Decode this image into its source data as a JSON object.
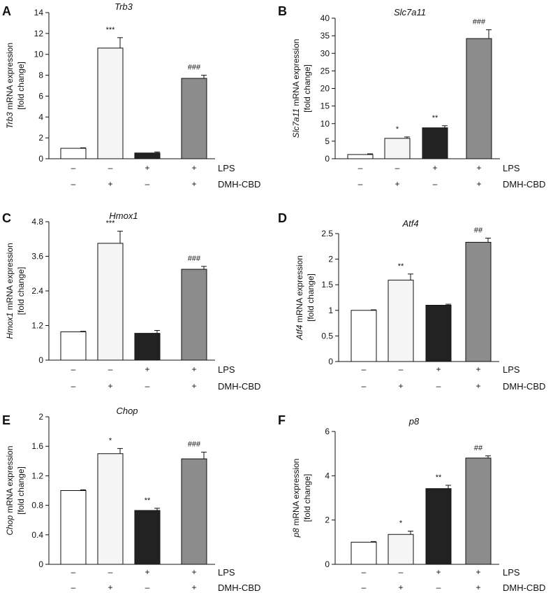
{
  "figure": {
    "condition_labels": [
      "LPS",
      "DMH-CBD"
    ],
    "colors": {
      "control": "#ffffff",
      "dmh_cbd": "#f5f5f5",
      "lps": "#222222",
      "lps_dmh_cbd": "#8c8c8c",
      "axis": "#111111"
    }
  },
  "chart_data": [
    {
      "panel": "A",
      "type": "bar",
      "title": "Trb3",
      "ylabel_gene": "Trb3",
      "ylabel_rest": " mRNA expression",
      "ylabel_line2": "[fold change]",
      "ylim": [
        0,
        14
      ],
      "yticks": [
        "0",
        "2",
        "4",
        "6",
        "8",
        "10",
        "12",
        "14"
      ],
      "lps": [
        "–",
        "–",
        "+",
        "+"
      ],
      "dmh_cbd": [
        "–",
        "+",
        "–",
        "+"
      ],
      "values": [
        1.0,
        10.6,
        0.55,
        7.7
      ],
      "errors": [
        0.05,
        1.0,
        0.1,
        0.3
      ],
      "significance": [
        "",
        "***",
        "",
        "###"
      ]
    },
    {
      "panel": "B",
      "type": "bar",
      "title": "Slc7a11",
      "ylabel_gene": "Slc7a11",
      "ylabel_rest": " mRNA expression",
      "ylabel_line2": "[fold change]",
      "ylim": [
        0,
        40
      ],
      "yticks": [
        "0",
        "5",
        "10",
        "15",
        "20",
        "25",
        "30",
        "35",
        "40"
      ],
      "lps": [
        "–",
        "–",
        "+",
        "+"
      ],
      "dmh_cbd": [
        "–",
        "+",
        "–",
        "+"
      ],
      "values": [
        1.2,
        5.8,
        8.8,
        34.2
      ],
      "errors": [
        0.2,
        0.4,
        0.6,
        2.5
      ],
      "significance": [
        "",
        "*",
        "**",
        "###"
      ]
    },
    {
      "panel": "C",
      "type": "bar",
      "title": "Hmox1",
      "ylabel_gene": "Hmox1",
      "ylabel_rest": " mRNA expression",
      "ylabel_line2": "[fold change]",
      "ylim": [
        0,
        4.8
      ],
      "yticks": [
        "0",
        "1.2",
        "2.4",
        "3.6",
        "4.8"
      ],
      "lps": [
        "–",
        "–",
        "+",
        "+"
      ],
      "dmh_cbd": [
        "–",
        "+",
        "–",
        "+"
      ],
      "values": [
        0.98,
        4.05,
        0.93,
        3.15
      ],
      "errors": [
        0.02,
        0.42,
        0.1,
        0.1
      ],
      "significance": [
        "",
        "***",
        "",
        "###"
      ]
    },
    {
      "panel": "D",
      "type": "bar",
      "title": "Atf4",
      "ylabel_gene": "Atf4",
      "ylabel_rest": " mRNA expression",
      "ylabel_line2": "[fold change]",
      "ylim": [
        0,
        2.5
      ],
      "yticks": [
        "0",
        "0.5",
        "1",
        "1.5",
        "2",
        "2.5"
      ],
      "lps": [
        "–",
        "–",
        "+",
        "+"
      ],
      "dmh_cbd": [
        "–",
        "+",
        "–",
        "+"
      ],
      "values": [
        1.0,
        1.59,
        1.1,
        2.33
      ],
      "errors": [
        0.01,
        0.12,
        0.02,
        0.08
      ],
      "significance": [
        "",
        "**",
        "",
        "##"
      ]
    },
    {
      "panel": "E",
      "type": "bar",
      "title": "Chop",
      "ylabel_gene": "Chop",
      "ylabel_rest": " mRNA expression",
      "ylabel_line2": "[fold change]",
      "ylim": [
        0,
        2
      ],
      "yticks": [
        "0",
        "0.4",
        "0.8",
        "1.2",
        "1.6",
        "2"
      ],
      "lps": [
        "–",
        "–",
        "+",
        "+"
      ],
      "dmh_cbd": [
        "–",
        "+",
        "–",
        "+"
      ],
      "values": [
        1.0,
        1.5,
        0.73,
        1.43
      ],
      "errors": [
        0.01,
        0.07,
        0.03,
        0.09
      ],
      "significance": [
        "",
        "*",
        "**",
        "###"
      ]
    },
    {
      "panel": "F",
      "type": "bar",
      "title": "p8",
      "ylabel_gene": "p8",
      "ylabel_rest": " mRNA expression",
      "ylabel_line2": "[fold change]",
      "ylim": [
        0,
        6
      ],
      "yticks": [
        "0",
        "2",
        "4",
        "6"
      ],
      "lps": [
        "–",
        "–",
        "+",
        "+"
      ],
      "dmh_cbd": [
        "–",
        "+",
        "–",
        "+"
      ],
      "values": [
        1.0,
        1.35,
        3.42,
        4.8
      ],
      "errors": [
        0.03,
        0.15,
        0.15,
        0.1
      ],
      "significance": [
        "",
        "*",
        "**",
        "##"
      ]
    }
  ]
}
